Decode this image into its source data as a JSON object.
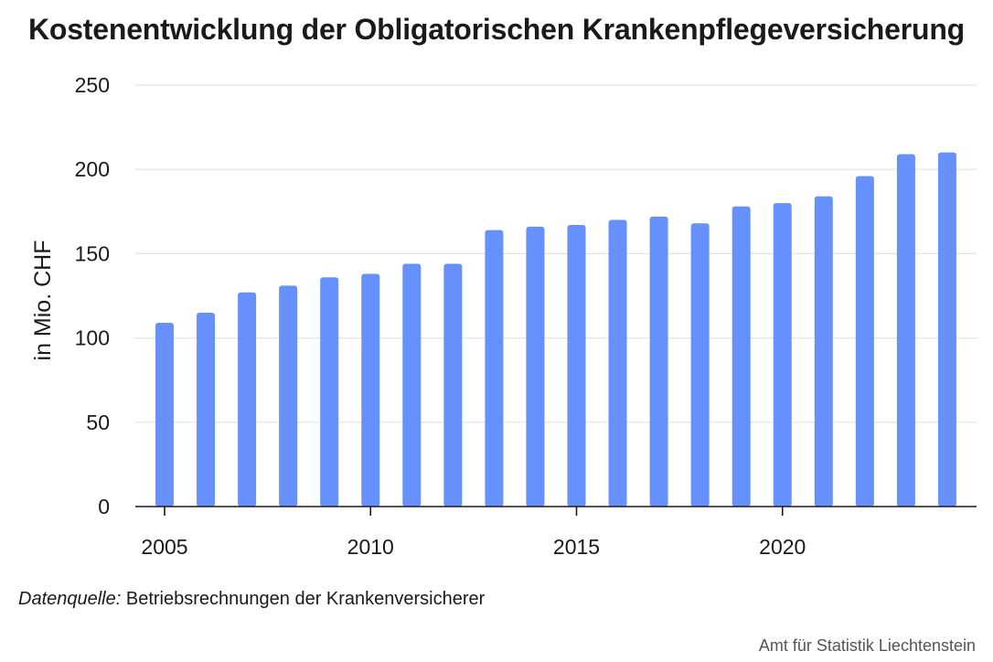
{
  "chart_data": {
    "type": "bar",
    "title": "Kostenentwicklung der Obligatorischen Krankenpflegeversicherung",
    "ylabel": "in Mio. CHF",
    "xlabel": "",
    "x": [
      2005,
      2006,
      2007,
      2008,
      2009,
      2010,
      2011,
      2012,
      2013,
      2014,
      2015,
      2016,
      2017,
      2018,
      2019,
      2020,
      2021,
      2022,
      2023,
      2024
    ],
    "values": [
      109,
      115,
      127,
      131,
      136,
      138,
      144,
      144,
      164,
      166,
      167,
      170,
      172,
      168,
      178,
      180,
      184,
      196,
      209,
      210
    ],
    "ylim": [
      0,
      250
    ],
    "yticks": [
      0,
      50,
      100,
      150,
      200,
      250
    ],
    "xticks": [
      2005,
      2010,
      2015,
      2020
    ],
    "grid": true,
    "bar_color": "#6690fb",
    "grid_color": "#e4e4e4",
    "axis_color": "#1a1a1a"
  },
  "footer": {
    "source_label": "Datenquelle:",
    "source_text": "Betriebsrechnungen der Krankenversicherer",
    "credit": "Amt für Statistik Liechtenstein"
  }
}
